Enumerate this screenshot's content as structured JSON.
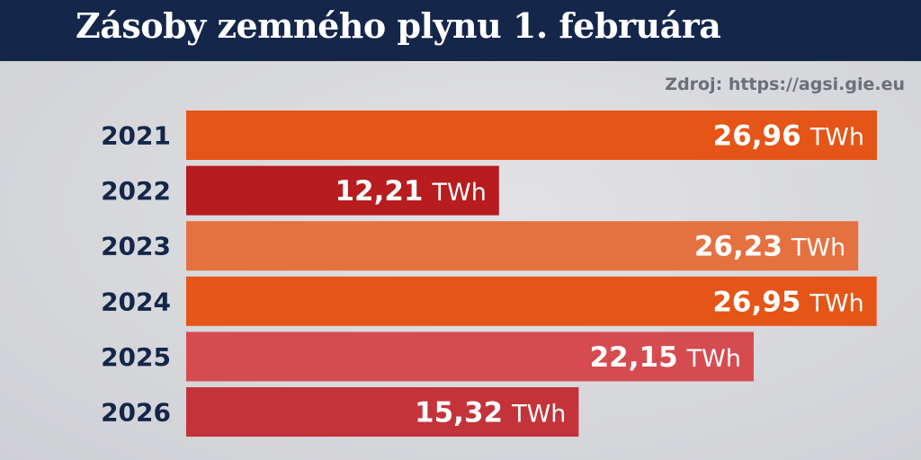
{
  "title": "Zásoby zemného plynu 1. februára",
  "source": "Zdroj: https://agsi.gie.eu",
  "chart_data": {
    "type": "bar",
    "orientation": "horizontal",
    "title": "Zásoby zemného plynu 1. februára",
    "categories": [
      "2021",
      "2022",
      "2023",
      "2024",
      "2025",
      "2026"
    ],
    "values": [
      26.96,
      12.21,
      26.23,
      26.95,
      22.15,
      15.32
    ],
    "value_labels": [
      "26,96",
      "12,21",
      "26,23",
      "26,95",
      "22,15",
      "15,32"
    ],
    "unit": "TWh",
    "xlim": [
      0,
      26.96
    ],
    "colors": [
      "#e55517",
      "#b71c1e",
      "#e57141",
      "#e55517",
      "#d64b50",
      "#c4333a"
    ],
    "grid": false,
    "legend": "none"
  }
}
